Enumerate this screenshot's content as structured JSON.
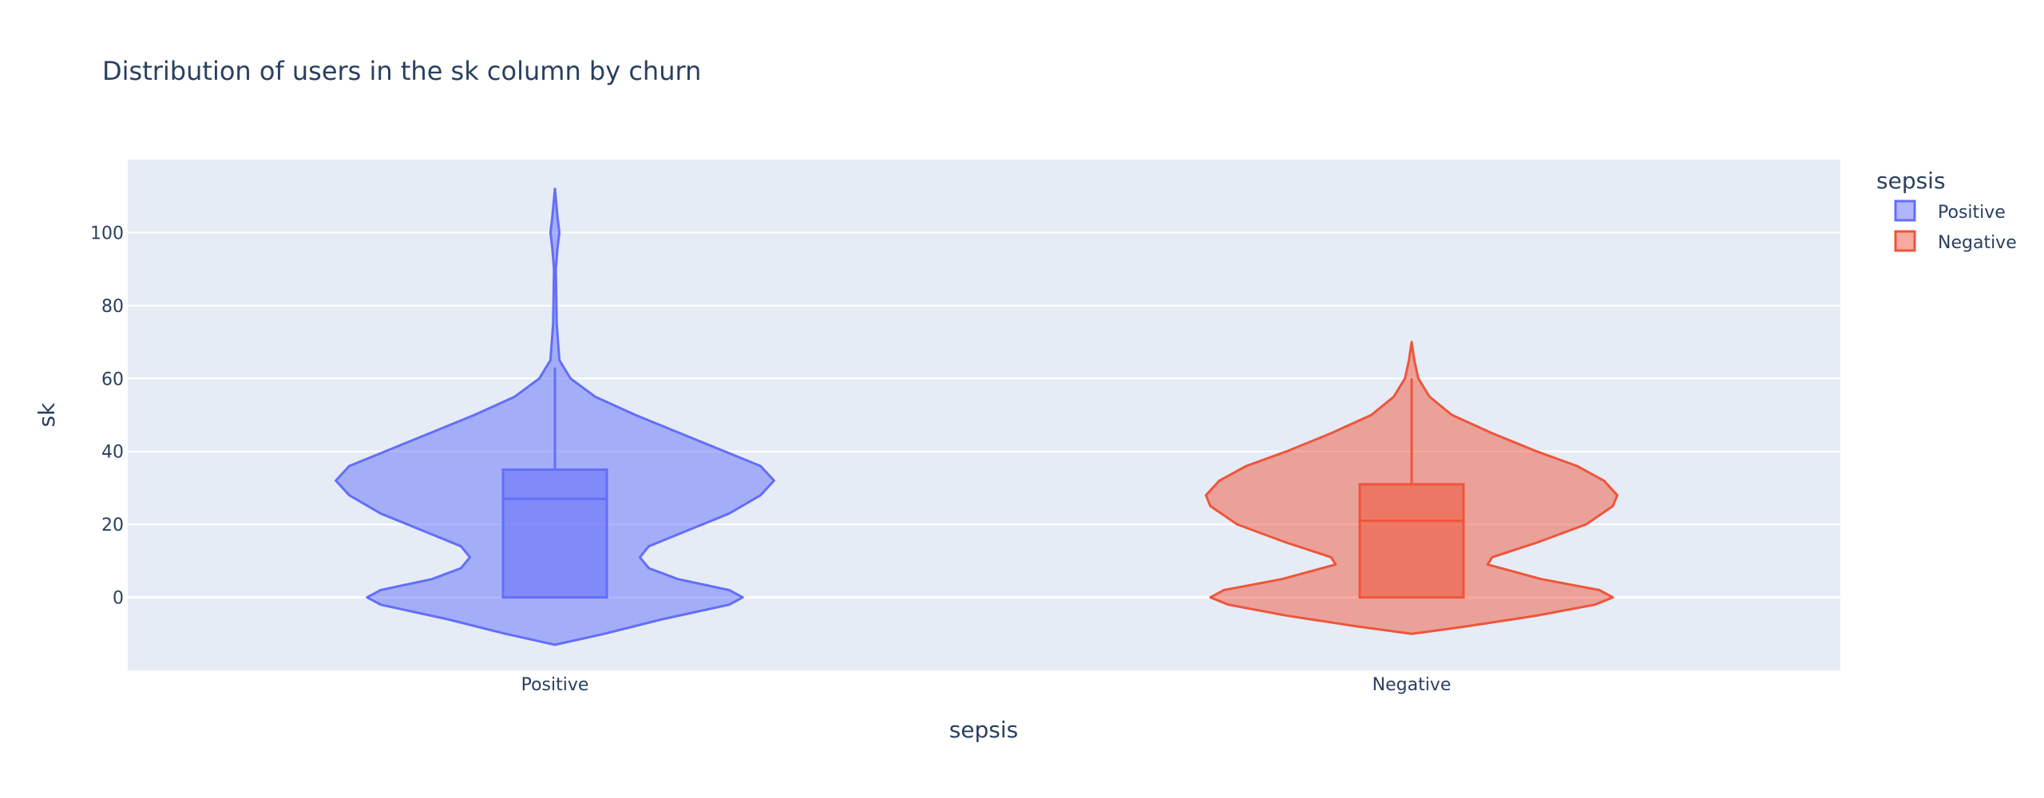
{
  "chart_data": {
    "type": "violin",
    "title": "Distribution of users in the sk column by churn",
    "xlabel": "sepsis",
    "ylabel": "sk",
    "categories": [
      "Positive",
      "Negative"
    ],
    "ylim": [
      -20,
      120
    ],
    "yticks": [
      0,
      20,
      40,
      60,
      80,
      100
    ],
    "grid": true,
    "legend": {
      "title": "sepsis",
      "placement": "top-right",
      "entries": [
        "Positive",
        "Negative"
      ]
    },
    "series": [
      {
        "name": "Positive",
        "color": "#636efa",
        "fill": "rgba(99,110,250,0.5)",
        "box": {
          "q1": 0,
          "median": 27,
          "q3": 35,
          "whisker_low": 0,
          "whisker_high": 63
        },
        "range": [
          -13,
          112
        ],
        "density": [
          [
            -13,
            0.0
          ],
          [
            -10,
            0.22
          ],
          [
            -6,
            0.48
          ],
          [
            -2,
            0.78
          ],
          [
            0,
            0.84
          ],
          [
            2,
            0.78
          ],
          [
            5,
            0.55
          ],
          [
            8,
            0.42
          ],
          [
            11,
            0.38
          ],
          [
            14,
            0.42
          ],
          [
            18,
            0.58
          ],
          [
            23,
            0.78
          ],
          [
            28,
            0.92
          ],
          [
            32,
            0.98
          ],
          [
            36,
            0.92
          ],
          [
            40,
            0.76
          ],
          [
            45,
            0.56
          ],
          [
            50,
            0.36
          ],
          [
            55,
            0.18
          ],
          [
            60,
            0.07
          ],
          [
            65,
            0.02
          ],
          [
            75,
            0.008
          ],
          [
            90,
            0.004
          ],
          [
            96,
            0.012
          ],
          [
            100,
            0.02
          ],
          [
            104,
            0.012
          ],
          [
            112,
            0.0
          ]
        ]
      },
      {
        "name": "Negative",
        "color": "#ef553b",
        "fill": "rgba(239,85,59,0.5)",
        "box": {
          "q1": 0,
          "median": 21,
          "q3": 31,
          "whisker_low": 0,
          "whisker_high": 60
        },
        "range": [
          -10,
          70
        ],
        "density": [
          [
            -10,
            0.0
          ],
          [
            -8,
            0.24
          ],
          [
            -5,
            0.56
          ],
          [
            -2,
            0.82
          ],
          [
            0,
            0.9
          ],
          [
            2,
            0.84
          ],
          [
            5,
            0.58
          ],
          [
            9,
            0.34
          ],
          [
            11,
            0.36
          ],
          [
            15,
            0.56
          ],
          [
            20,
            0.78
          ],
          [
            25,
            0.9
          ],
          [
            28,
            0.92
          ],
          [
            32,
            0.86
          ],
          [
            36,
            0.74
          ],
          [
            40,
            0.56
          ],
          [
            45,
            0.36
          ],
          [
            50,
            0.18
          ],
          [
            55,
            0.08
          ],
          [
            60,
            0.03
          ],
          [
            65,
            0.012
          ],
          [
            70,
            0.0
          ]
        ]
      }
    ]
  }
}
